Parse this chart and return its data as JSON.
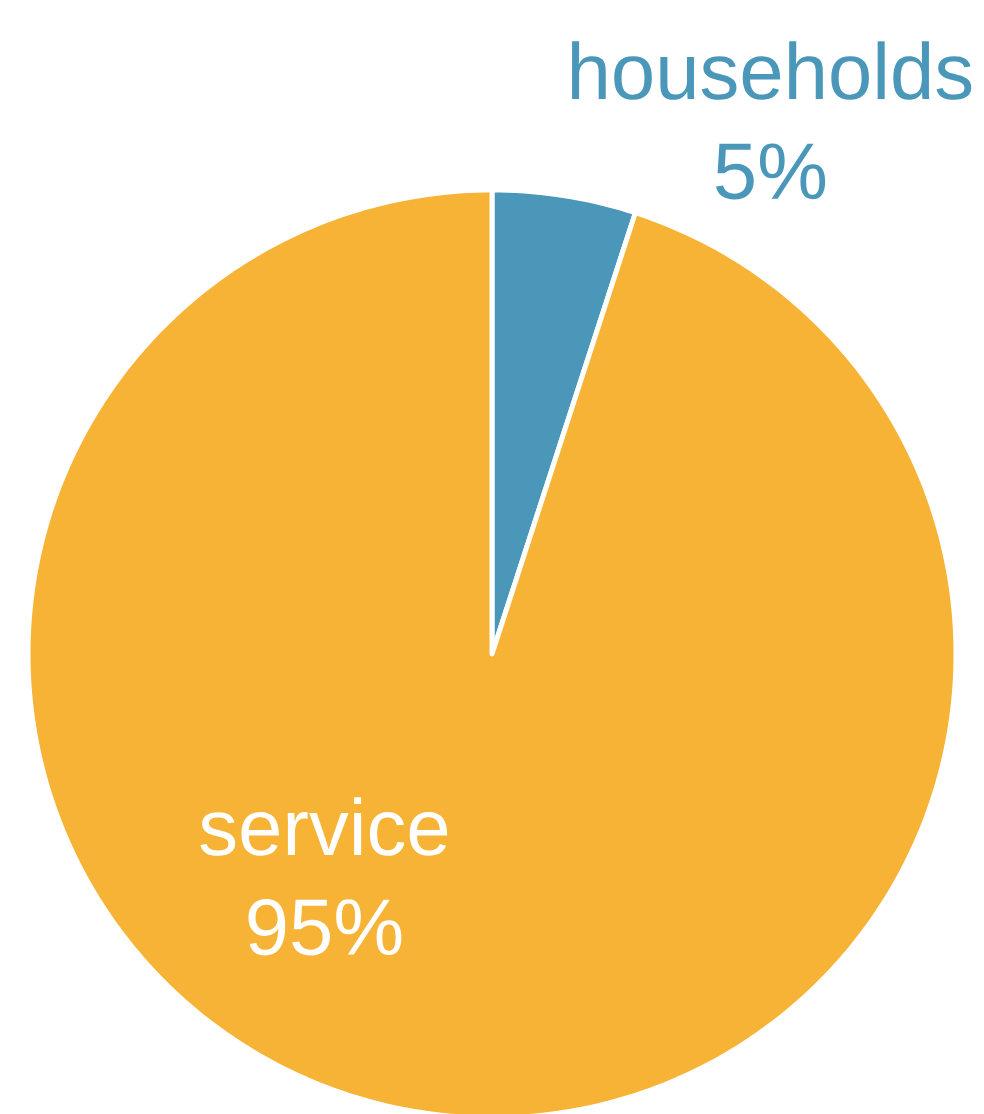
{
  "chart_data": {
    "type": "pie",
    "categories": [
      "households",
      "service"
    ],
    "values": [
      5,
      95
    ],
    "colors": [
      "#4a97b9",
      "#f6b335"
    ],
    "value_labels": [
      "5%",
      "95%"
    ]
  }
}
